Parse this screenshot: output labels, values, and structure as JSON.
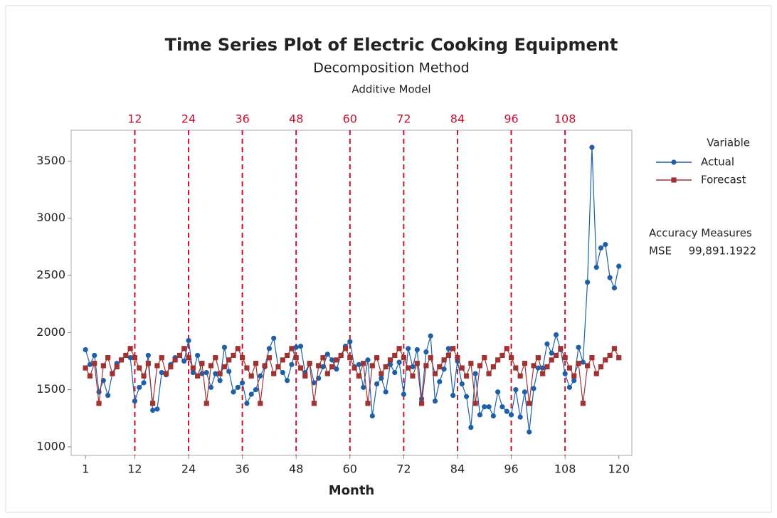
{
  "chart_data": {
    "type": "line",
    "title": "Time Series Plot of Electric Cooking Equipment",
    "subtitle": "Decomposition Method",
    "subtitle2": "Additive Model",
    "x_label": "Month",
    "x": [
      1,
      2,
      3,
      4,
      5,
      6,
      7,
      8,
      9,
      10,
      11,
      12,
      13,
      14,
      15,
      16,
      17,
      18,
      19,
      20,
      21,
      22,
      23,
      24,
      25,
      26,
      27,
      28,
      29,
      30,
      31,
      32,
      33,
      34,
      35,
      36,
      37,
      38,
      39,
      40,
      41,
      42,
      43,
      44,
      45,
      46,
      47,
      48,
      49,
      50,
      51,
      52,
      53,
      54,
      55,
      56,
      57,
      58,
      59,
      60,
      61,
      62,
      63,
      64,
      65,
      66,
      67,
      68,
      69,
      70,
      71,
      72,
      73,
      74,
      75,
      76,
      77,
      78,
      79,
      80,
      81,
      82,
      83,
      84,
      85,
      86,
      87,
      88,
      89,
      90,
      91,
      92,
      93,
      94,
      95,
      96,
      97,
      98,
      99,
      100,
      101,
      102,
      103,
      104,
      105,
      106,
      107,
      108,
      109,
      110,
      111,
      112,
      113,
      114,
      115,
      116,
      117,
      118,
      119,
      120
    ],
    "series": [
      {
        "name": "Actual",
        "color": "#1f5fa8",
        "marker": "circle",
        "values": [
          1850,
          1720,
          1800,
          1480,
          1580,
          1450,
          1640,
          1730,
          1760,
          1800,
          1780,
          1400,
          1520,
          1560,
          1800,
          1320,
          1330,
          1650,
          1630,
          1720,
          1780,
          1800,
          1750,
          1930,
          1650,
          1800,
          1640,
          1650,
          1520,
          1640,
          1580,
          1870,
          1660,
          1480,
          1520,
          1560,
          1380,
          1460,
          1500,
          1620,
          1700,
          1860,
          1950,
          1700,
          1650,
          1580,
          1720,
          1870,
          1880,
          1650,
          1730,
          1560,
          1600,
          1700,
          1810,
          1760,
          1680,
          1800,
          1880,
          1920,
          1700,
          1720,
          1520,
          1760,
          1270,
          1550,
          1600,
          1480,
          1720,
          1650,
          1740,
          1460,
          1860,
          1700,
          1850,
          1420,
          1830,
          1970,
          1400,
          1570,
          1680,
          1860,
          1450,
          1750,
          1550,
          1440,
          1170,
          1640,
          1280,
          1350,
          1350,
          1270,
          1480,
          1350,
          1310,
          1280,
          1500,
          1260,
          1480,
          1130,
          1510,
          1690,
          1690,
          1900,
          1820,
          1980,
          1850,
          1640,
          1520,
          1580,
          1870,
          1740,
          2440,
          3620,
          2570,
          2740,
          2770,
          2480,
          2390,
          2580
        ]
      },
      {
        "name": "Forecast",
        "color": "#a03232",
        "marker": "square",
        "values": [
          1690,
          1620,
          1730,
          1380,
          1710,
          1780,
          1640,
          1700,
          1760,
          1800,
          1860,
          1780,
          1690,
          1620,
          1730,
          1380,
          1710,
          1780,
          1640,
          1700,
          1760,
          1800,
          1860,
          1780,
          1690,
          1620,
          1730,
          1380,
          1710,
          1780,
          1640,
          1700,
          1760,
          1800,
          1860,
          1780,
          1690,
          1620,
          1730,
          1380,
          1710,
          1780,
          1640,
          1700,
          1760,
          1800,
          1860,
          1780,
          1690,
          1620,
          1730,
          1380,
          1710,
          1780,
          1640,
          1700,
          1760,
          1800,
          1860,
          1780,
          1690,
          1620,
          1730,
          1380,
          1710,
          1780,
          1640,
          1700,
          1760,
          1800,
          1860,
          1780,
          1690,
          1620,
          1730,
          1380,
          1710,
          1780,
          1640,
          1700,
          1760,
          1800,
          1860,
          1780,
          1690,
          1620,
          1730,
          1380,
          1710,
          1780,
          1640,
          1700,
          1760,
          1800,
          1860,
          1780,
          1690,
          1620,
          1730,
          1380,
          1710,
          1780,
          1640,
          1700,
          1760,
          1800,
          1860,
          1780,
          1690,
          1620,
          1730,
          1380,
          1710,
          1780,
          1640,
          1700,
          1760,
          1800,
          1860,
          1780
        ]
      }
    ],
    "xlim": [
      -2.2,
      122.9
    ],
    "xticks": [
      1,
      12,
      24,
      36,
      48,
      60,
      72,
      84,
      96,
      108,
      120
    ],
    "ylim": [
      925,
      3770
    ],
    "yticks": [
      1000,
      1500,
      2000,
      2500,
      3000,
      3500
    ],
    "reference_lines": [
      12,
      24,
      36,
      48,
      60,
      72,
      84,
      96,
      108
    ],
    "reference_color": "#c8102e",
    "legend_title": "Variable",
    "legend_position": "right",
    "accuracy": {
      "title": "Accuracy Measures",
      "measure": "MSE",
      "value": {
        "value": 99891.1922,
        "label": "99,891.1922"
      }
    }
  }
}
